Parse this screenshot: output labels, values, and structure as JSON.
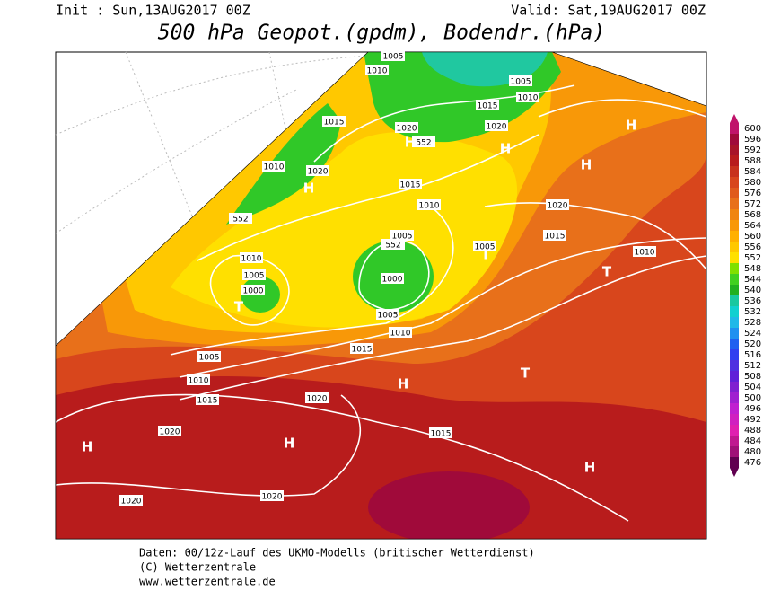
{
  "header": {
    "init": "Init : Sun,13AUG2017 00Z",
    "valid": "Valid: Sat,19AUG2017 00Z",
    "title": "500 hPa Geopot.(gpdm), Bodendr.(hPa)"
  },
  "legend": {
    "levels": [
      600,
      596,
      592,
      588,
      584,
      580,
      576,
      572,
      568,
      564,
      560,
      556,
      552,
      548,
      544,
      540,
      536,
      532,
      528,
      524,
      520,
      516,
      512,
      508,
      504,
      500,
      496,
      492,
      488,
      484,
      480,
      476
    ],
    "colors": [
      "#c0146a",
      "#a00a3a",
      "#a81428",
      "#b81c1c",
      "#c8321c",
      "#d8461c",
      "#e05a1c",
      "#e8701a",
      "#f08410",
      "#f89808",
      "#ffb000",
      "#ffc800",
      "#ffe000",
      "#80e000",
      "#40d020",
      "#20b020",
      "#18c8a0",
      "#10d0d0",
      "#20b8e8",
      "#2090f0",
      "#2060f0",
      "#3040f0",
      "#5030e0",
      "#6020d8",
      "#8020d0",
      "#a020d0",
      "#c020d0",
      "#d020c0",
      "#e020b0",
      "#c01890",
      "#a01078",
      "#600050"
    ]
  },
  "map": {
    "isobar_labels": [
      "1005",
      "1010",
      "1005",
      "1010",
      "1015",
      "1020",
      "1015",
      "1020",
      "552",
      "1010",
      "1020",
      "1015",
      "1010",
      "552",
      "1020",
      "1015",
      "1005",
      "552",
      "1005",
      "1010",
      "1010",
      "1005",
      "1000",
      "1000",
      "1005",
      "1010",
      "1015",
      "1005",
      "1010",
      "1015",
      "1020",
      "1020",
      "1015",
      "1020",
      "1020"
    ],
    "centers": [
      "H",
      "H",
      "H",
      "H",
      "H",
      "T",
      "T",
      "T",
      "T",
      "H",
      "H",
      "H",
      "H"
    ]
  },
  "footer": {
    "lines": [
      "Daten: 00/12z-Lauf des UKMO-Modells (britischer Wetterdienst)",
      "(C) Wetterzentrale",
      "www.wetterzentrale.de"
    ]
  }
}
